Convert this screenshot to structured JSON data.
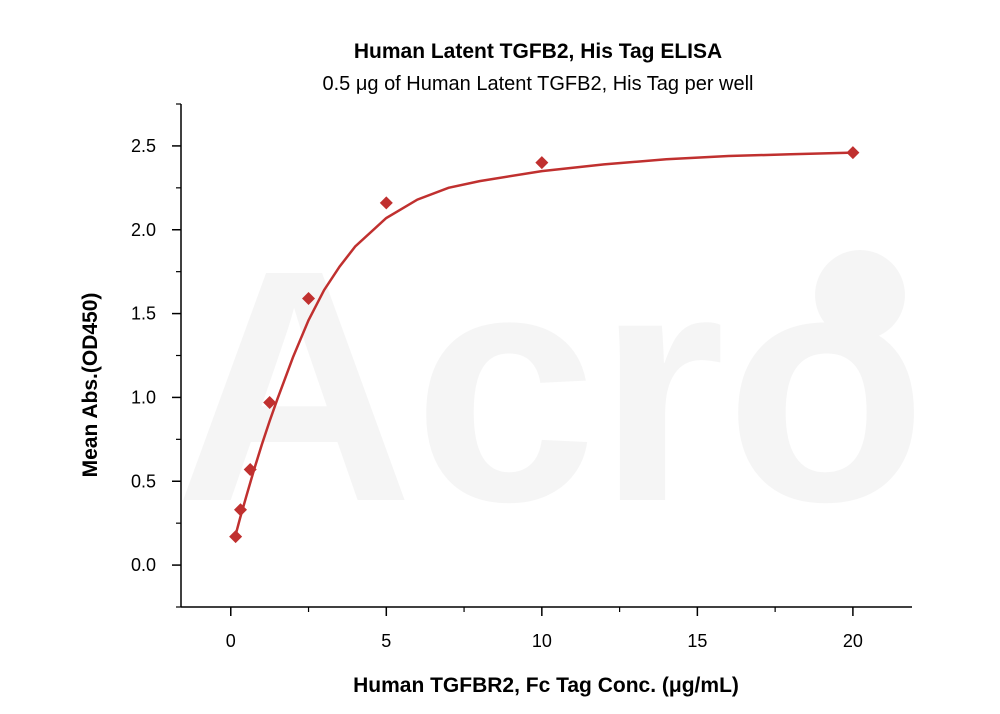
{
  "chart_data": {
    "type": "scatter",
    "title": "Human Latent TGFB2, His Tag ELISA",
    "subtitle": "0.5 μg of Human Latent TGFB2, His Tag per well",
    "xlabel": "Human TGFBR2, Fc Tag Conc. (μg/mL)",
    "ylabel": "Mean Abs.(OD450)",
    "xlim": [
      -1.6,
      21.9
    ],
    "ylim": [
      -0.25,
      2.75
    ],
    "x_ticks": [
      0,
      5,
      10,
      15,
      20
    ],
    "y_ticks": [
      0.0,
      0.5,
      1.0,
      1.5,
      2.0,
      2.5
    ],
    "x_tick_labels": [
      "0",
      "5",
      "10",
      "15",
      "20"
    ],
    "y_tick_labels": [
      "0.0",
      "0.5",
      "1.0",
      "1.5",
      "2.0",
      "2.5"
    ],
    "grid": false,
    "series": [
      {
        "marker": "diamond",
        "color": "#c0302f",
        "x": [
          0.156,
          0.3125,
          0.625,
          1.25,
          2.5,
          5,
          10,
          20
        ],
        "y": [
          0.17,
          0.33,
          0.57,
          0.97,
          1.59,
          2.16,
          2.4,
          2.46
        ]
      }
    ],
    "fit_curve": {
      "color": "#c0302f",
      "x": [
        0.156,
        0.3,
        0.5,
        0.75,
        1.0,
        1.25,
        1.5,
        2.0,
        2.5,
        3.0,
        3.5,
        4.0,
        5.0,
        6.0,
        7.0,
        8.0,
        10.0,
        12.0,
        14.0,
        16.0,
        18.0,
        20.0
      ],
      "y": [
        0.18,
        0.28,
        0.41,
        0.57,
        0.72,
        0.86,
        0.99,
        1.24,
        1.46,
        1.64,
        1.78,
        1.9,
        2.07,
        2.18,
        2.25,
        2.29,
        2.35,
        2.39,
        2.42,
        2.44,
        2.45,
        2.46
      ]
    }
  }
}
